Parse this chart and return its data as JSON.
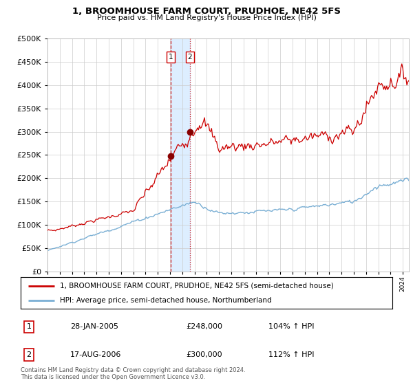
{
  "title": "1, BROOMHOUSE FARM COURT, PRUDHOE, NE42 5FS",
  "subtitle": "Price paid vs. HM Land Registry's House Price Index (HPI)",
  "legend_line1": "1, BROOMHOUSE FARM COURT, PRUDHOE, NE42 5FS (semi-detached house)",
  "legend_line2": "HPI: Average price, semi-detached house, Northumberland",
  "sale1_label": "1",
  "sale1_date": "28-JAN-2005",
  "sale1_price": "£248,000",
  "sale1_hpi": "104% ↑ HPI",
  "sale2_label": "2",
  "sale2_date": "17-AUG-2006",
  "sale2_price": "£300,000",
  "sale2_hpi": "112% ↑ HPI",
  "footnote": "Contains HM Land Registry data © Crown copyright and database right 2024.\nThis data is licensed under the Open Government Licence v3.0.",
  "red_color": "#cc0000",
  "blue_color": "#7aafd4",
  "shade_color": "#ddeeff",
  "ylim": [
    0,
    500000
  ],
  "yticks": [
    0,
    50000,
    100000,
    150000,
    200000,
    250000,
    300000,
    350000,
    400000,
    450000,
    500000
  ],
  "sale1_x": 2005.07,
  "sale1_y": 248000,
  "sale2_x": 2006.63,
  "sale2_y": 300000,
  "vline1_x": 2005.07,
  "vline2_x": 2006.63,
  "xmin": 1995,
  "xmax": 2024.5
}
